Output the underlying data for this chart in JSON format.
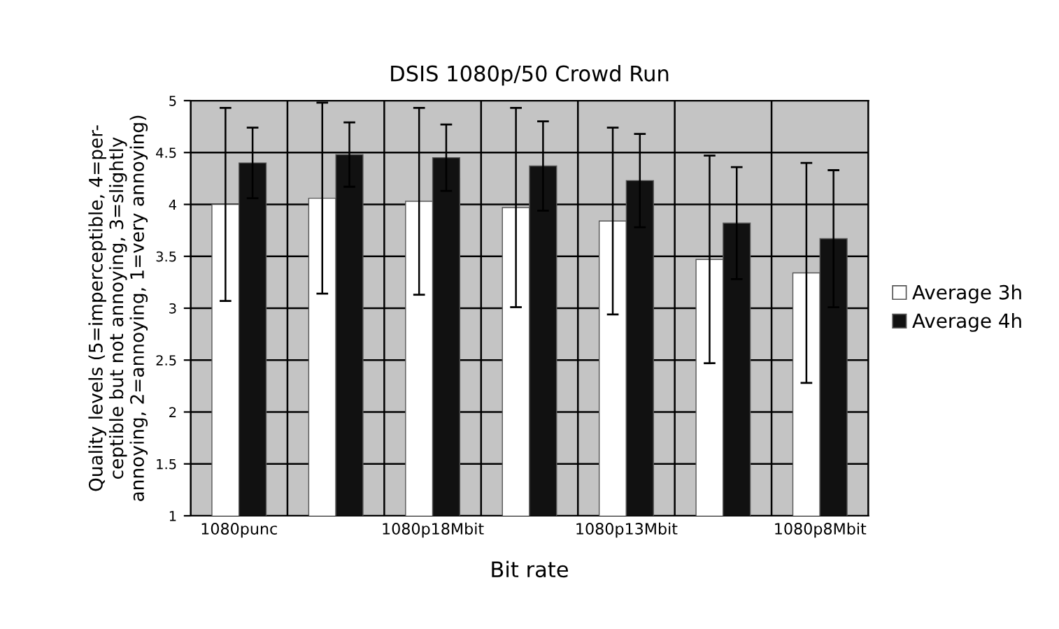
{
  "chart_data": {
    "type": "bar",
    "title": "DSIS 1080p/50 Crowd Run",
    "xlabel": "Bit rate",
    "ylabel": "Quality levels (5=imperceptible, 4=per-\nceptible but not annoying, 3=slightly\nannoying, 2=annoying, 1=very annoying)",
    "categories": [
      "1080punc",
      null,
      "1080p18Mbit",
      null,
      "1080p13Mbit",
      null,
      "1080p8Mbit"
    ],
    "series": [
      {
        "name": "Average 3h",
        "color": "#ffffff",
        "values": [
          4.0,
          4.06,
          4.03,
          3.97,
          3.84,
          3.47,
          3.34
        ],
        "errors": [
          0.93,
          0.92,
          0.9,
          0.96,
          0.9,
          1.0,
          1.06
        ]
      },
      {
        "name": "Average 4h",
        "color": "#111111",
        "values": [
          4.4,
          4.48,
          4.45,
          4.37,
          4.23,
          3.82,
          3.67
        ],
        "errors": [
          0.34,
          0.31,
          0.32,
          0.43,
          0.45,
          0.54,
          0.66
        ]
      }
    ],
    "ylim": [
      1,
      5
    ],
    "yticks": [
      1,
      1.5,
      2,
      2.5,
      3,
      3.5,
      4,
      4.5,
      5
    ],
    "grid": true,
    "legend": "right"
  }
}
